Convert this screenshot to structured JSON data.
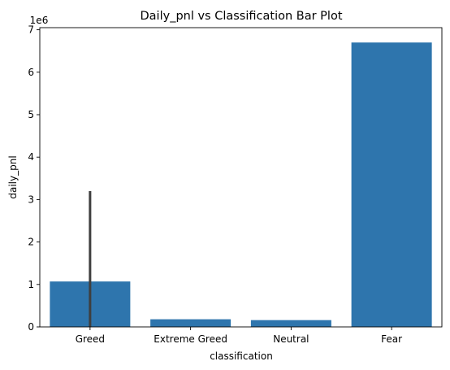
{
  "chart_data": {
    "type": "bar",
    "title": "Daily_pnl vs Classification Bar Plot",
    "xlabel": "classification",
    "ylabel": "daily_pnl",
    "y_scale_label": "1e6",
    "categories": [
      "Greed",
      "Extreme Greed",
      "Neutral",
      "Fear"
    ],
    "values": [
      1.07,
      0.18,
      0.16,
      6.7
    ],
    "error_bars": [
      {
        "category": "Greed",
        "low": 0.0,
        "high": 3.2
      }
    ],
    "ylim": [
      0,
      7.05
    ],
    "yticks": [
      0,
      1,
      2,
      3,
      4,
      5,
      6,
      7
    ],
    "grid": false,
    "bar_color": "#2e75ad",
    "errorbar_color": "#3f3f3f"
  }
}
